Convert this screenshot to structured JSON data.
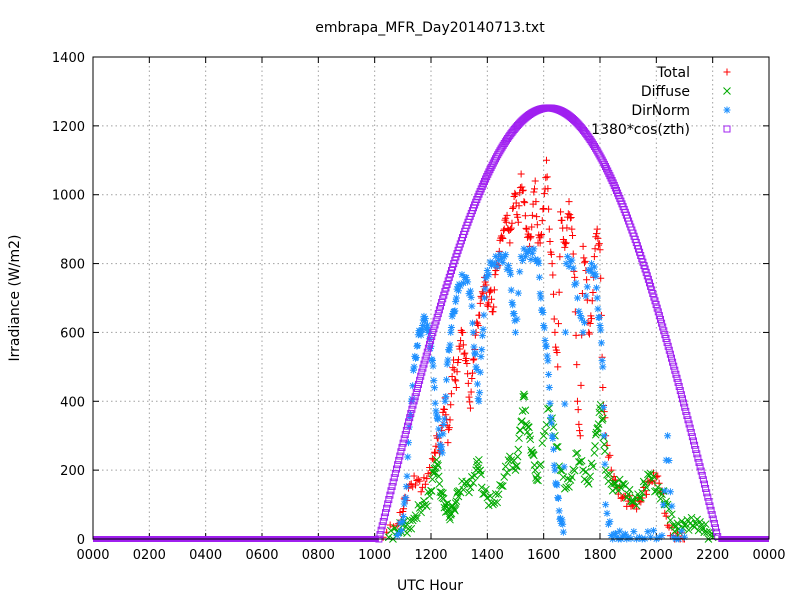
{
  "chart_data": {
    "type": "scatter",
    "title": "embrapa_MFR_Day20140713.txt",
    "xlabel": "UTC Hour",
    "ylabel": "Irradiance (W/m2)",
    "xlim": [
      0,
      2400
    ],
    "ylim": [
      0,
      1400
    ],
    "x_ticks": [
      "0000",
      "0200",
      "0400",
      "0600",
      "0800",
      "1000",
      "1200",
      "1400",
      "1600",
      "1800",
      "2000",
      "2200",
      "0000"
    ],
    "y_ticks": [
      0,
      200,
      400,
      600,
      800,
      1000,
      1200,
      1400
    ],
    "grid": true,
    "legend_position": "top-right",
    "series": [
      {
        "name": "Total",
        "marker": "plus",
        "color": "#ff0000",
        "points": [
          [
            1030,
            5
          ],
          [
            1080,
            40
          ],
          [
            1100,
            80
          ],
          [
            1110,
            120
          ],
          [
            1130,
            160
          ],
          [
            1150,
            170
          ],
          [
            1170,
            150
          ],
          [
            1190,
            190
          ],
          [
            1210,
            230
          ],
          [
            1220,
            300
          ],
          [
            1230,
            250
          ],
          [
            1240,
            330
          ],
          [
            1250,
            410
          ],
          [
            1260,
            280
          ],
          [
            1270,
            390
          ],
          [
            1280,
            520
          ],
          [
            1290,
            440
          ],
          [
            1300,
            560
          ],
          [
            1310,
            600
          ],
          [
            1320,
            540
          ],
          [
            1330,
            480
          ],
          [
            1340,
            380
          ],
          [
            1350,
            520
          ],
          [
            1360,
            600
          ],
          [
            1370,
            650
          ],
          [
            1380,
            700
          ],
          [
            1390,
            760
          ],
          [
            1400,
            680
          ],
          [
            1410,
            720
          ],
          [
            1420,
            660
          ],
          [
            1430,
            780
          ],
          [
            1440,
            820
          ],
          [
            1450,
            880
          ],
          [
            1460,
            900
          ],
          [
            1470,
            940
          ],
          [
            1480,
            860
          ],
          [
            1490,
            960
          ],
          [
            1500,
            1000
          ],
          [
            1510,
            920
          ],
          [
            1520,
            1060
          ],
          [
            1530,
            980
          ],
          [
            1540,
            900
          ],
          [
            1550,
            850
          ],
          [
            1560,
            940
          ],
          [
            1570,
            1040
          ],
          [
            1580,
            860
          ],
          [
            1590,
            880
          ],
          [
            1600,
            960
          ],
          [
            1610,
            1100
          ],
          [
            1620,
            900
          ],
          [
            1630,
            800
          ],
          [
            1640,
            600
          ],
          [
            1650,
            500
          ],
          [
            1660,
            950
          ],
          [
            1670,
            870
          ],
          [
            1680,
            860
          ],
          [
            1690,
            980
          ],
          [
            1700,
            900
          ],
          [
            1710,
            760
          ],
          [
            1720,
            400
          ],
          [
            1730,
            300
          ],
          [
            1740,
            850
          ],
          [
            1750,
            780
          ],
          [
            1760,
            600
          ],
          [
            1770,
            640
          ],
          [
            1780,
            820
          ],
          [
            1790,
            900
          ],
          [
            1800,
            840
          ],
          [
            1810,
            440
          ],
          [
            1820,
            300
          ],
          [
            1840,
            200
          ],
          [
            1860,
            150
          ],
          [
            1880,
            120
          ],
          [
            1900,
            110
          ],
          [
            1920,
            100
          ],
          [
            1940,
            110
          ],
          [
            1960,
            140
          ],
          [
            1980,
            170
          ],
          [
            2000,
            180
          ],
          [
            2020,
            140
          ],
          [
            2040,
            40
          ],
          [
            2060,
            10
          ],
          [
            2080,
            2
          ],
          [
            2100,
            0
          ]
        ]
      },
      {
        "name": "Diffuse",
        "marker": "cross",
        "color": "#00aa00",
        "points": [
          [
            1050,
            5
          ],
          [
            1080,
            20
          ],
          [
            1100,
            40
          ],
          [
            1120,
            30
          ],
          [
            1140,
            60
          ],
          [
            1160,
            90
          ],
          [
            1180,
            100
          ],
          [
            1200,
            140
          ],
          [
            1210,
            190
          ],
          [
            1220,
            230
          ],
          [
            1230,
            160
          ],
          [
            1240,
            120
          ],
          [
            1250,
            100
          ],
          [
            1260,
            80
          ],
          [
            1270,
            70
          ],
          [
            1280,
            90
          ],
          [
            1290,
            110
          ],
          [
            1300,
            140
          ],
          [
            1320,
            160
          ],
          [
            1340,
            150
          ],
          [
            1360,
            200
          ],
          [
            1370,
            230
          ],
          [
            1380,
            150
          ],
          [
            1400,
            120
          ],
          [
            1420,
            100
          ],
          [
            1440,
            130
          ],
          [
            1460,
            180
          ],
          [
            1480,
            240
          ],
          [
            1500,
            200
          ],
          [
            1510,
            260
          ],
          [
            1520,
            340
          ],
          [
            1530,
            420
          ],
          [
            1540,
            330
          ],
          [
            1550,
            300
          ],
          [
            1560,
            250
          ],
          [
            1570,
            200
          ],
          [
            1580,
            170
          ],
          [
            1600,
            300
          ],
          [
            1620,
            380
          ],
          [
            1640,
            300
          ],
          [
            1660,
            200
          ],
          [
            1680,
            150
          ],
          [
            1700,
            180
          ],
          [
            1720,
            250
          ],
          [
            1740,
            200
          ],
          [
            1760,
            160
          ],
          [
            1780,
            250
          ],
          [
            1790,
            320
          ],
          [
            1800,
            380
          ],
          [
            1810,
            350
          ],
          [
            1820,
            200
          ],
          [
            1840,
            160
          ],
          [
            1860,
            150
          ],
          [
            1880,
            160
          ],
          [
            1900,
            130
          ],
          [
            1920,
            110
          ],
          [
            1940,
            120
          ],
          [
            1960,
            160
          ],
          [
            1980,
            190
          ],
          [
            2000,
            140
          ],
          [
            2020,
            130
          ],
          [
            2040,
            100
          ],
          [
            2060,
            40
          ],
          [
            2080,
            30
          ],
          [
            2100,
            40
          ],
          [
            2120,
            45
          ],
          [
            2140,
            45
          ],
          [
            2160,
            40
          ],
          [
            2180,
            20
          ],
          [
            2200,
            5
          ]
        ]
      },
      {
        "name": "DirNorm",
        "marker": "star",
        "color": "#1e90ff",
        "points": [
          [
            1080,
            10
          ],
          [
            1100,
            50
          ],
          [
            1110,
            120
          ],
          [
            1120,
            280
          ],
          [
            1130,
            400
          ],
          [
            1140,
            500
          ],
          [
            1150,
            560
          ],
          [
            1160,
            600
          ],
          [
            1170,
            620
          ],
          [
            1180,
            640
          ],
          [
            1190,
            600
          ],
          [
            1200,
            560
          ],
          [
            1210,
            460
          ],
          [
            1220,
            360
          ],
          [
            1230,
            300
          ],
          [
            1240,
            250
          ],
          [
            1250,
            400
          ],
          [
            1260,
            520
          ],
          [
            1270,
            600
          ],
          [
            1280,
            660
          ],
          [
            1290,
            700
          ],
          [
            1300,
            740
          ],
          [
            1320,
            760
          ],
          [
            1340,
            720
          ],
          [
            1350,
            600
          ],
          [
            1360,
            500
          ],
          [
            1370,
            400
          ],
          [
            1380,
            550
          ],
          [
            1390,
            700
          ],
          [
            1400,
            780
          ],
          [
            1420,
            800
          ],
          [
            1440,
            810
          ],
          [
            1460,
            820
          ],
          [
            1480,
            780
          ],
          [
            1490,
            680
          ],
          [
            1500,
            600
          ],
          [
            1520,
            820
          ],
          [
            1540,
            830
          ],
          [
            1560,
            830
          ],
          [
            1580,
            810
          ],
          [
            1590,
            700
          ],
          [
            1600,
            620
          ],
          [
            1610,
            560
          ],
          [
            1620,
            440
          ],
          [
            1630,
            300
          ],
          [
            1640,
            200
          ],
          [
            1650,
            120
          ],
          [
            1660,
            60
          ],
          [
            1670,
            20
          ],
          [
            1680,
            800
          ],
          [
            1700,
            810
          ],
          [
            1720,
            700
          ],
          [
            1740,
            600
          ],
          [
            1760,
            780
          ],
          [
            1780,
            790
          ],
          [
            1790,
            700
          ],
          [
            1800,
            620
          ],
          [
            1810,
            500
          ],
          [
            1820,
            100
          ],
          [
            1840,
            10
          ],
          [
            1860,
            5
          ],
          [
            1880,
            5
          ],
          [
            1900,
            5
          ],
          [
            1940,
            5
          ],
          [
            1980,
            5
          ],
          [
            2020,
            10
          ],
          [
            2040,
            300
          ],
          [
            2060,
            5
          ],
          [
            2100,
            5
          ]
        ]
      },
      {
        "name": "1380*cos(zth)",
        "marker": "square",
        "color": "#a020f0",
        "sun_rise": 1015,
        "sun_set": 2220,
        "noon": 1617,
        "peak": 1252,
        "points": [
          [
            0,
            0
          ],
          [
            1015,
            0
          ],
          [
            1100,
            250
          ],
          [
            1200,
            580
          ],
          [
            1300,
            870
          ],
          [
            1400,
            1080
          ],
          [
            1500,
            1210
          ],
          [
            1617,
            1252
          ],
          [
            1700,
            1230
          ],
          [
            1800,
            1110
          ],
          [
            1900,
            920
          ],
          [
            2000,
            660
          ],
          [
            2100,
            360
          ],
          [
            2220,
            0
          ],
          [
            2400,
            0
          ]
        ]
      }
    ]
  }
}
